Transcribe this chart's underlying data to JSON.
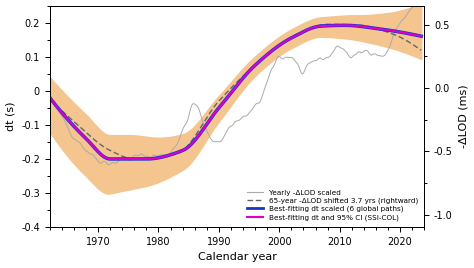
{
  "title": "",
  "xlabel": "Calendar year",
  "ylabel_left": "dt (s)",
  "ylabel_right": "-ΔLOD (ms)",
  "xlim": [
    1962,
    2024
  ],
  "ylim_left": [
    -0.4,
    0.25
  ],
  "ylim_right": [
    -1.1,
    0.65
  ],
  "xticks": [
    1970,
    1980,
    1990,
    2000,
    2010,
    2020
  ],
  "yticks_left": [
    -0.4,
    -0.3,
    -0.2,
    -0.1,
    0.0,
    0.1,
    0.2
  ],
  "yticks_right": [
    -1.0,
    -0.5,
    0.0,
    0.5
  ],
  "ci_color": "#f5c590",
  "blue_color": "#1535cc",
  "magenta_color": "#dd00cc",
  "grey_color": "#aaaaaa",
  "dashed_color": "#666666",
  "background_color": "#ffffff",
  "legend_labels": [
    "Yearly -ΔLOD scaled",
    "65-year -ΔLOD shifted 3.7 yrs (rightward)",
    "Best-fitting dt scaled (6 global paths)",
    "Best-fitting dt and 95% CI (SSI-COL)"
  ]
}
